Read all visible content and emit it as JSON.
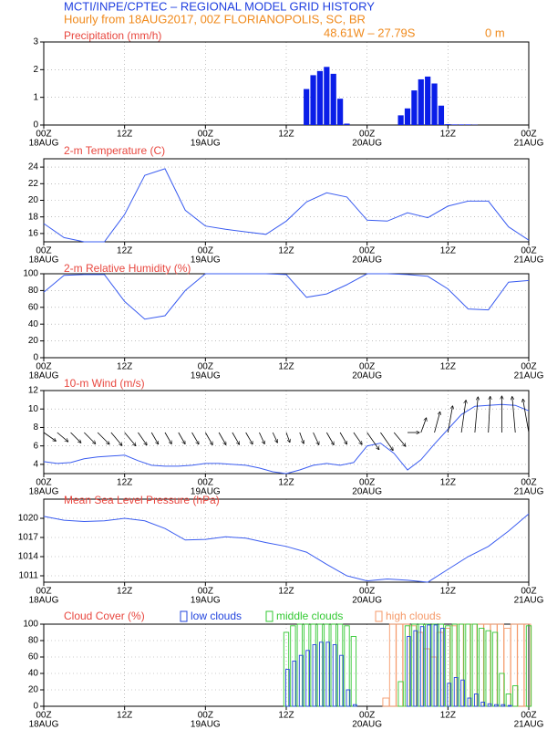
{
  "chart_data": {
    "title": "MCTI/INPE/CPTEC – REGIONAL MODEL GRID HISTORY",
    "subtitle": "Hourly from 18AUG2017, 00Z  FLORIANOPOLIS, SC, BR",
    "coordinates": "48.61W – 27.79S",
    "elevation": "0  m",
    "xlim": [
      0,
      72
    ],
    "xticks": [
      {
        "value": 0,
        "label": "00Z"
      },
      {
        "value": 12,
        "label": "12Z"
      },
      {
        "value": 24,
        "label": "00Z"
      },
      {
        "value": 36,
        "label": "12Z"
      },
      {
        "value": 48,
        "label": "00Z"
      },
      {
        "value": 60,
        "label": "12Z"
      },
      {
        "value": 72,
        "label": "00Z"
      }
    ],
    "xdates": [
      {
        "value": 0,
        "label": "18AUG"
      },
      {
        "value": 24,
        "label": "19AUG"
      },
      {
        "value": 48,
        "label": "20AUG"
      },
      {
        "value": 72,
        "label": "21AUG"
      }
    ],
    "grid": true,
    "panels": [
      {
        "type": "bar",
        "title": "Precipitation (mm/h)",
        "ylim": [
          0,
          3
        ],
        "yticks": [
          0,
          1,
          2,
          3
        ],
        "x": [
          39,
          40,
          41,
          42,
          43,
          44,
          45,
          53,
          54,
          55,
          56,
          57,
          58,
          59,
          60,
          61,
          62,
          63,
          64
        ],
        "series": [
          {
            "color": "#0a1ee8",
            "values": [
              1.3,
              1.8,
              1.95,
              2.1,
              1.85,
              0.95,
              0.05,
              0.35,
              0.6,
              1.25,
              1.65,
              1.75,
              1.5,
              0.7,
              0.03,
              0.02,
              0.02,
              0.02,
              0.01
            ]
          }
        ]
      },
      {
        "type": "line",
        "title": "2-m Temperature (C)",
        "ylim": [
          15,
          25
        ],
        "yticks": [
          16,
          18,
          20,
          22,
          24
        ],
        "x": [
          0,
          3,
          6,
          9,
          12,
          15,
          18,
          21,
          24,
          27,
          30,
          33,
          36,
          39,
          42,
          45,
          48,
          51,
          54,
          57,
          60,
          63,
          66,
          69,
          72
        ],
        "series": [
          {
            "color": "#3a5cf0",
            "values": [
              17.2,
              15.5,
              15.0,
              15.0,
              18.3,
              23.0,
              23.8,
              18.8,
              16.9,
              16.5,
              16.2,
              15.9,
              17.5,
              19.8,
              20.9,
              20.4,
              17.6,
              17.5,
              18.5,
              17.9,
              19.3,
              19.9,
              19.9,
              16.8,
              15.2
            ]
          }
        ]
      },
      {
        "type": "line",
        "title": "2-m Relative Humidity (%)",
        "ylim": [
          0,
          100
        ],
        "yticks": [
          0,
          20,
          40,
          60,
          80,
          100
        ],
        "x": [
          0,
          3,
          6,
          9,
          12,
          15,
          18,
          21,
          24,
          27,
          30,
          33,
          36,
          39,
          42,
          45,
          48,
          51,
          54,
          57,
          60,
          63,
          66,
          69,
          72
        ],
        "series": [
          {
            "color": "#3a5cf0",
            "values": [
              78,
              98,
              99,
              99,
              67,
              46,
              50,
              80,
              100,
              100,
              100,
              100,
              99,
              72,
              76,
              87,
              100,
              100,
              99,
              97,
              82,
              58,
              57,
              90,
              92
            ]
          }
        ]
      },
      {
        "type": "wind",
        "title": "10-m Wind (m/s)",
        "ylim": [
          3,
          12
        ],
        "yticks": [
          4,
          6,
          8,
          10,
          12
        ],
        "x": [
          0,
          2,
          4,
          6,
          8,
          10,
          12,
          14,
          16,
          18,
          20,
          22,
          24,
          26,
          28,
          30,
          32,
          34,
          36,
          38,
          40,
          42,
          44,
          46,
          48,
          50,
          52,
          54,
          56,
          58,
          60,
          62,
          64,
          66,
          68,
          70,
          72
        ],
        "series": [
          {
            "color": "#3a5cf0",
            "values": [
              4.3,
              4.1,
              4.2,
              4.6,
              4.8,
              4.9,
              5.0,
              4.4,
              3.9,
              3.8,
              3.8,
              3.9,
              4.1,
              4.1,
              4.0,
              3.9,
              3.6,
              3.2,
              3.0,
              3.4,
              3.9,
              4.1,
              3.9,
              4.2,
              6.0,
              6.3,
              5.2,
              3.4,
              4.5,
              6.2,
              7.8,
              9.4,
              10.3,
              10.4,
              10.5,
              10.4,
              9.8
            ]
          }
        ],
        "directions": [
          125,
          130,
          135,
          135,
          135,
          140,
          140,
          145,
          150,
          150,
          150,
          150,
          150,
          150,
          150,
          150,
          155,
          155,
          160,
          160,
          155,
          150,
          150,
          145,
          145,
          145,
          140,
          90,
          20,
          15,
          10,
          8,
          5,
          3,
          0,
          355,
          350
        ]
      },
      {
        "type": "line",
        "title": "Mean Sea Level Pressure (hPa)",
        "ylim": [
          1010,
          1023
        ],
        "yticks": [
          1011,
          1014,
          1017,
          1020
        ],
        "x": [
          0,
          3,
          6,
          9,
          12,
          15,
          18,
          21,
          24,
          27,
          30,
          33,
          36,
          39,
          42,
          45,
          48,
          51,
          54,
          57,
          60,
          63,
          66,
          69,
          72
        ],
        "series": [
          {
            "color": "#3a5cf0",
            "values": [
              1020.3,
              1019.7,
              1019.5,
              1019.6,
              1020.0,
              1019.6,
              1018.4,
              1016.6,
              1016.7,
              1017.1,
              1016.9,
              1016.2,
              1015.6,
              1014.7,
              1012.8,
              1011.0,
              1010.2,
              1010.5,
              1010.3,
              1010.0,
              1012.0,
              1014.0,
              1015.6,
              1018.0,
              1020.7
            ]
          }
        ]
      },
      {
        "type": "cloud_bar",
        "title": "Cloud Cover (%)",
        "ylim": [
          0,
          100
        ],
        "yticks": [
          0,
          20,
          40,
          60,
          80,
          100
        ],
        "x": [
          36,
          37,
          38,
          39,
          40,
          41,
          42,
          43,
          44,
          45,
          46,
          47,
          48,
          49,
          50,
          51,
          52,
          53,
          54,
          55,
          56,
          57,
          58,
          59,
          60,
          61,
          62,
          63,
          64,
          65,
          66,
          67,
          68,
          69,
          70,
          71,
          72
        ],
        "series": [
          {
            "name": "high clouds",
            "color": "#f59a6a",
            "values": [
              0,
              0,
              0,
              0,
              0,
              0,
              0,
              0,
              0,
              0,
              0,
              0,
              0,
              0,
              0,
              10,
              100,
              100,
              100,
              98,
              90,
              70,
              60,
              90,
              95,
              98,
              100,
              100,
              100,
              100,
              100,
              100,
              100,
              95,
              100,
              100,
              100
            ]
          },
          {
            "name": "middle clouds",
            "color": "#33c933",
            "values": [
              90,
              98,
              100,
              100,
              100,
              100,
              100,
              100,
              100,
              98,
              85,
              0,
              0,
              0,
              0,
              0,
              0,
              30,
              98,
              100,
              100,
              100,
              100,
              100,
              98,
              100,
              100,
              100,
              100,
              95,
              92,
              90,
              40,
              15,
              25,
              0,
              98
            ]
          },
          {
            "name": "low clouds",
            "color": "#2244dd",
            "values": [
              45,
              55,
              62,
              68,
              75,
              78,
              78,
              75,
              62,
              20,
              2,
              0,
              0,
              0,
              0,
              0,
              0,
              0,
              85,
              92,
              97,
              99,
              99,
              95,
              28,
              35,
              32,
              10,
              15,
              5,
              3,
              2,
              2,
              1,
              0,
              0,
              0
            ]
          }
        ]
      }
    ]
  }
}
